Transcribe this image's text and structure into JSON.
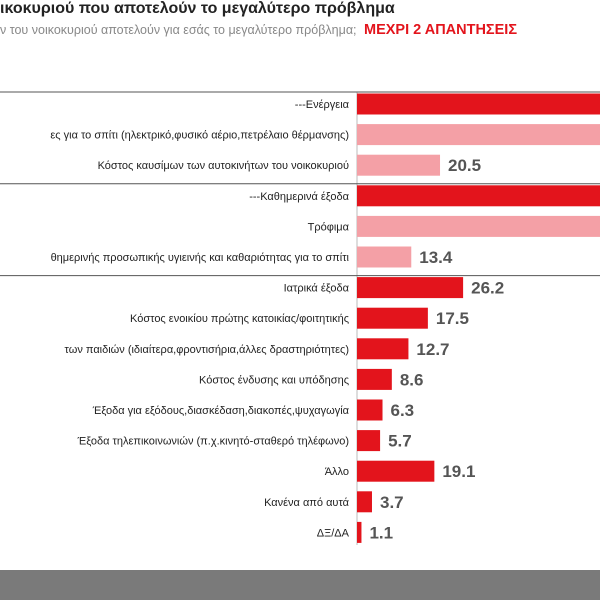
{
  "header": {
    "title": "ικοκυριού  που αποτελούν το μεγαλύτερο πρόβλημα",
    "subtitle": "ν του νοικοκυριού  αποτελούν για εσάς το μεγαλύτερο πρόβλημα;",
    "subtitle_highlight": "ΜΕΧΡΙ 2 ΑΠΑΝΤΗΣΕΙΣ"
  },
  "colors": {
    "bar_main": "#e3141c",
    "bar_sub": "#f4a0a6",
    "value_text": "#555555",
    "label_text": "#222222",
    "footer": "#7a7a7a"
  },
  "chart_data": {
    "type": "bar",
    "orientation": "horizontal",
    "title": "ικοκυριού  που αποτελούν το μεγαλύτερο πρόβλημα",
    "xlim": [
      0,
      40
    ],
    "categories": [
      "---Ενέργεια",
      "ες για το σπίτι (ηλεκτρικό,φυσικό αέριο,πετρέλαιο θέρμανσης)",
      "Κόστος καυσίμων των αυτοκινήτων του νοικοκυριού",
      "---Καθημερινά έξοδα",
      "Τρόφιμα",
      "θημερινής προσωπικής υγιεινής και καθαριότητας για το σπίτι",
      "Ιατρικά έξοδα",
      "Κόστος ενοικίου πρώτης κατοικίας/φοιτητικής",
      "των παιδιών (ιδιαίτερα,φροντισήρια,άλλες δραστηριότητες)",
      "Κόστος ένδυσης και υπόδησης",
      "Έξοδα για εξόδους,διασκέδαση,διακοπές,ψυχαγωγία",
      "Έξοδα τηλεπικοινωνιών (π.χ.κινητό-σταθερό τηλέφωνο)",
      "Άλλο",
      "Κανένα από αυτά",
      "ΔΞ/ΔΑ"
    ],
    "values": [
      null,
      null,
      20.5,
      null,
      null,
      13.4,
      26.2,
      17.5,
      12.7,
      8.6,
      6.3,
      5.7,
      19.1,
      3.7,
      1.1
    ],
    "value_labels": [
      "",
      "",
      "20.5",
      "",
      "",
      "13.4",
      "26.2",
      "17.5",
      "12.7",
      "8.6",
      "6.3",
      "5.7",
      "19.1",
      "3.7",
      "1.1"
    ],
    "kinds": [
      "main",
      "sub",
      "sub",
      "main",
      "sub",
      "sub",
      "main",
      "main",
      "main",
      "main",
      "main",
      "main",
      "main",
      "main",
      "main"
    ],
    "note": "Bars for Ενέργεια, heating item, Καθημερινά έξοδα and Τρόφιμα extend past the visible right edge; their values are not shown."
  }
}
